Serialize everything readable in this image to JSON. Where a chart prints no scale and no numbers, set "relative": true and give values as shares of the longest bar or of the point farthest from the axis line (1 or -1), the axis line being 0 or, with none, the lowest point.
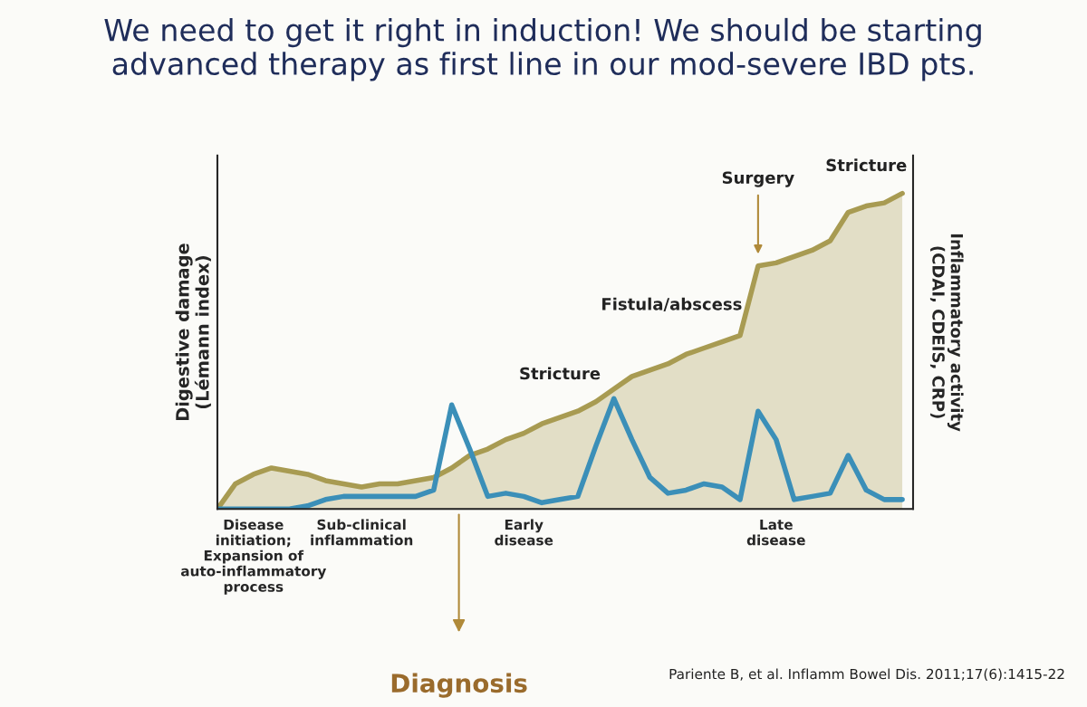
{
  "chart_data": {
    "type": "area",
    "relative": true,
    "title": "We need to get it right in induction! We should be starting\nadvanced therapy as first line in our mod-severe IBD pts.",
    "ylabel": "Digestive damage\n(Lémann index)",
    "y2label": "Inflammatory activity\n(CDAI, CDEIS, CRP)",
    "categories": [
      null,
      null,
      "Disease\ninitiation;\nExpansion of\nauto-inflammatory\nprocess",
      null,
      null,
      null,
      null,
      null,
      "Sub-clinical\ninflammation",
      null,
      null,
      null,
      null,
      null,
      null,
      null,
      null,
      "Early\ndisease",
      null,
      null,
      null,
      null,
      null,
      null,
      null,
      null,
      null,
      null,
      null,
      null,
      null,
      "Late\ndisease",
      null,
      null,
      null,
      null,
      null,
      null,
      null
    ],
    "series": [
      {
        "color": "#a89b52",
        "values": [
          0,
          0.08,
          0.11,
          0.13,
          0.12,
          0.11,
          0.09,
          0.08,
          0.07,
          0.08,
          0.08,
          0.09,
          0.1,
          0.13,
          0.17,
          0.19,
          0.22,
          0.24,
          0.27,
          0.29,
          0.31,
          0.34,
          0.38,
          0.42,
          0.44,
          0.46,
          0.49,
          0.51,
          0.53,
          0.55,
          0.77,
          0.78,
          0.8,
          0.82,
          0.85,
          0.94,
          0.96,
          0.97,
          1
        ]
      },
      {
        "type": "line",
        "axis": "y2",
        "color": "#3b8fb8",
        "values": [
          0,
          0,
          0,
          0,
          0,
          0.01,
          0.03,
          0.04,
          0.04,
          0.04,
          0.04,
          0.04,
          0.06,
          0.33,
          0.19,
          0.04,
          0.05,
          0.04,
          0.02,
          0.03,
          0.04,
          0.2,
          0.35,
          0.22,
          0.1,
          0.05,
          0.06,
          0.08,
          0.07,
          0.03,
          0.31,
          0.22,
          0.03,
          0.04,
          0.05,
          0.17,
          0.06,
          0.03,
          0.03
        ]
      }
    ],
    "annotations": [
      "Stricture",
      "Fistula/abscess",
      "Surgery",
      "Stricture",
      "Diagnosis",
      "Pariente B, et al. Inflamm Bowel Dis. 2011;17(6):1415-22"
    ],
    "grid": false,
    "legend": false
  }
}
